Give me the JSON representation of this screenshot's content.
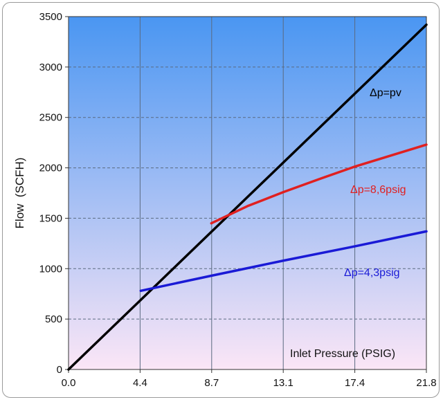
{
  "chart_data": {
    "type": "line",
    "title": "",
    "xlabel": "Inlet Pressure (PSIG)",
    "ylabel": "Flow  (SCFH)",
    "x_ticks": [
      "0.0",
      "4.4",
      "8.7",
      "13.1",
      "17.4",
      "21.8"
    ],
    "xlim": [
      0,
      21.8
    ],
    "y_ticks": [
      0,
      500,
      1000,
      1500,
      2000,
      2500,
      3000,
      3500
    ],
    "ylim": [
      0,
      3500
    ],
    "grid": true,
    "background_gradient": [
      "#4a96f2",
      "#fbe6f6"
    ],
    "series": [
      {
        "name": "Δp=pv",
        "color": "#000000",
        "x": [
          0,
          21.8
        ],
        "y": [
          0,
          3420
        ]
      },
      {
        "name": "Δp=8,6psig",
        "color": "#e02020",
        "x": [
          8.7,
          10.9,
          13.1,
          15.3,
          17.4,
          19.6,
          21.8
        ],
        "y": [
          1450,
          1620,
          1760,
          1890,
          2010,
          2120,
          2230
        ]
      },
      {
        "name": "Δp=4,3psig",
        "color": "#1a1ad6",
        "x": [
          4.4,
          8.7,
          13.1,
          17.4,
          21.8
        ],
        "y": [
          780,
          930,
          1080,
          1220,
          1370
        ]
      }
    ],
    "annotations": [
      {
        "text": "Δp=pv",
        "series": 0,
        "color": "#000000"
      },
      {
        "text": "Δp=8,6psig",
        "series": 1,
        "color": "#e02020"
      },
      {
        "text": "Δp=4,3psig",
        "series": 2,
        "color": "#1a1ad6"
      }
    ]
  }
}
